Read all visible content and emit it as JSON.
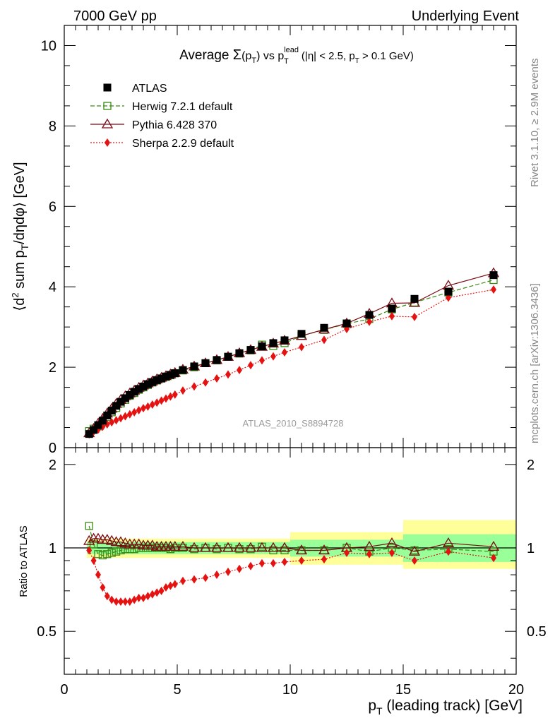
{
  "header": {
    "left": "7000 GeV pp",
    "right": "Underlying Event"
  },
  "side_labels": {
    "rivet": "Rivet 3.1.10, ≥ 2.9M events",
    "mcplots": "mcplots.cern.ch [arXiv:1306.3436]"
  },
  "watermark": "ATLAS_2010_S8894728",
  "colors": {
    "atlas": "#000000",
    "herwig": "#3a8a12",
    "pythia": "#7a0a14",
    "sherpa": "#e51212",
    "band_yellow": "#ffff99",
    "band_green": "#99ff99"
  },
  "chart_data": [
    {
      "type": "line",
      "panel": "main",
      "title_parts": {
        "prefix": "Average ",
        "sigma": "Σ",
        "sigma_arg_open": "(p",
        "sigma_sub": "T",
        "sigma_arg_close": ")",
        "vs": " vs p",
        "lead_sup": "lead",
        "lead_sub": "T",
        "cut_open": " (|η| < 2.5, p",
        "cut_sub": "T",
        "cut_close": " > 0.1 GeV)"
      },
      "ylabel_parts": {
        "open": "⟨d",
        "sup2": "2",
        "mid": " sum p",
        "sub": "T",
        "close": "/dηdφ⟩ [GeV]"
      },
      "xlim": [
        0,
        20
      ],
      "ylim": [
        0,
        10.5
      ],
      "yticks": [
        "0",
        "2",
        "4",
        "6",
        "8",
        "10"
      ],
      "legend_placement": "top-left",
      "x": [
        1.1,
        1.3,
        1.5,
        1.7,
        1.9,
        2.1,
        2.3,
        2.5,
        2.7,
        2.9,
        3.1,
        3.3,
        3.5,
        3.7,
        3.9,
        4.1,
        4.3,
        4.5,
        4.7,
        4.9,
        5.25,
        5.75,
        6.25,
        6.75,
        7.25,
        7.75,
        8.25,
        8.75,
        9.25,
        9.75,
        10.5,
        11.5,
        12.5,
        13.5,
        14.5,
        15.5,
        17.0,
        19.0
      ],
      "series": [
        {
          "name": "ATLAS",
          "marker": "filled-square",
          "line": "none",
          "values": [
            0.34,
            0.44,
            0.56,
            0.67,
            0.8,
            0.92,
            1.04,
            1.14,
            1.23,
            1.31,
            1.39,
            1.46,
            1.52,
            1.58,
            1.63,
            1.68,
            1.72,
            1.77,
            1.81,
            1.85,
            1.93,
            2.02,
            2.1,
            2.18,
            2.26,
            2.35,
            2.43,
            2.52,
            2.6,
            2.67,
            2.83,
            2.98,
            3.09,
            3.3,
            3.46,
            3.7,
            3.88,
            4.29
          ]
        },
        {
          "name": "Herwig 7.2.1 default",
          "marker": "open-square",
          "line": "dashed",
          "values": [
            0.41,
            0.47,
            0.53,
            0.64,
            0.76,
            0.88,
            0.99,
            1.1,
            1.19,
            1.29,
            1.36,
            1.44,
            1.5,
            1.56,
            1.62,
            1.67,
            1.72,
            1.76,
            1.8,
            1.85,
            1.92,
            2.0,
            2.1,
            2.17,
            2.26,
            2.34,
            2.42,
            2.56,
            2.53,
            2.6,
            2.78,
            2.93,
            3.08,
            3.2,
            3.44,
            3.61,
            3.86,
            4.17
          ]
        },
        {
          "name": "Pythia 6.428 370",
          "marker": "open-triangle",
          "line": "solid",
          "values": [
            0.36,
            0.47,
            0.6,
            0.72,
            0.85,
            0.97,
            1.09,
            1.19,
            1.28,
            1.35,
            1.42,
            1.49,
            1.55,
            1.6,
            1.65,
            1.7,
            1.74,
            1.78,
            1.82,
            1.86,
            1.94,
            2.02,
            2.1,
            2.18,
            2.26,
            2.35,
            2.43,
            2.51,
            2.59,
            2.66,
            2.78,
            2.94,
            3.09,
            3.33,
            3.59,
            3.6,
            4.03,
            4.34
          ]
        },
        {
          "name": "Sherpa 2.2.9 default",
          "marker": "filled-diamond",
          "line": "dotted",
          "values": [
            0.33,
            0.4,
            0.45,
            0.52,
            0.58,
            0.63,
            0.68,
            0.73,
            0.78,
            0.83,
            0.88,
            0.93,
            0.98,
            1.02,
            1.07,
            1.12,
            1.17,
            1.22,
            1.27,
            1.32,
            1.42,
            1.52,
            1.62,
            1.72,
            1.82,
            1.93,
            2.05,
            2.17,
            2.27,
            2.37,
            2.5,
            2.68,
            2.95,
            3.13,
            3.27,
            3.25,
            3.73,
            3.93
          ]
        }
      ]
    },
    {
      "type": "line",
      "panel": "ratio",
      "ylabel": "Ratio to ATLAS",
      "xlabel_parts": {
        "main": "p",
        "sub": "T",
        "rest": " (leading track) [GeV]"
      },
      "xlim": [
        0,
        20
      ],
      "ylim": [
        0.35,
        2.3
      ],
      "xticks": [
        "0",
        "5",
        "10",
        "15",
        "20"
      ],
      "yticks": [
        "0.5",
        "1",
        "2"
      ],
      "x": [
        1.1,
        1.3,
        1.5,
        1.7,
        1.9,
        2.1,
        2.3,
        2.5,
        2.7,
        2.9,
        3.1,
        3.3,
        3.5,
        3.7,
        3.9,
        4.1,
        4.3,
        4.5,
        4.7,
        4.9,
        5.25,
        5.75,
        6.25,
        6.75,
        7.25,
        7.75,
        8.25,
        8.75,
        9.25,
        9.75,
        10.5,
        11.5,
        12.5,
        13.5,
        14.5,
        15.5,
        17.0,
        19.0
      ],
      "bands": {
        "x_edges": [
          1.0,
          10.0,
          15.0,
          20.0
        ],
        "green": [
          [
            0.95,
            1.05
          ],
          [
            0.93,
            1.07
          ],
          [
            0.89,
            1.12
          ]
        ],
        "yellow": [
          [
            0.92,
            1.08
          ],
          [
            0.87,
            1.14
          ],
          [
            0.84,
            1.26
          ]
        ]
      },
      "series": [
        {
          "name": "Herwig 7.2.1 default",
          "marker": "open-square",
          "line": "dashed",
          "values": [
            1.2,
            1.03,
            0.95,
            0.94,
            0.95,
            0.96,
            0.97,
            0.98,
            0.99,
            0.99,
            0.99,
            1.0,
            1.0,
            1.0,
            1.0,
            1.0,
            1.0,
            1.0,
            0.99,
            1.0,
            1.0,
            0.99,
            1.0,
            0.99,
            1.0,
            0.99,
            0.99,
            1.01,
            0.98,
            0.98,
            0.98,
            0.98,
            1.0,
            0.97,
            1.0,
            0.98,
            0.99,
            0.97
          ]
        },
        {
          "name": "Pythia 6.428 370",
          "marker": "open-triangle",
          "line": "solid",
          "values": [
            1.06,
            1.08,
            1.08,
            1.07,
            1.07,
            1.06,
            1.05,
            1.05,
            1.04,
            1.03,
            1.03,
            1.03,
            1.02,
            1.02,
            1.02,
            1.01,
            1.01,
            1.01,
            1.01,
            1.01,
            1.01,
            1.0,
            1.0,
            1.0,
            1.0,
            1.0,
            1.0,
            1.0,
            1.0,
            1.0,
            0.98,
            0.98,
            1.0,
            1.01,
            1.04,
            0.97,
            1.04,
            1.01
          ]
        },
        {
          "name": "Sherpa 2.2.9 default",
          "marker": "filled-diamond",
          "line": "dotted",
          "values": [
            0.98,
            0.9,
            0.8,
            0.72,
            0.67,
            0.65,
            0.64,
            0.64,
            0.64,
            0.64,
            0.65,
            0.66,
            0.66,
            0.67,
            0.68,
            0.69,
            0.7,
            0.72,
            0.73,
            0.74,
            0.76,
            0.77,
            0.78,
            0.8,
            0.82,
            0.84,
            0.86,
            0.88,
            0.88,
            0.89,
            0.9,
            0.91,
            0.96,
            0.95,
            0.96,
            0.9,
            0.97,
            0.92
          ]
        }
      ]
    }
  ]
}
